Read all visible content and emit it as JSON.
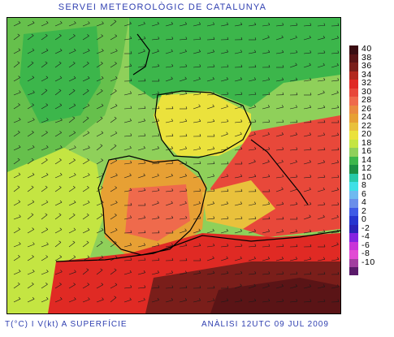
{
  "header": {
    "title": "SERVEI METEOROLÒGIC DE CATALUNYA"
  },
  "footer": {
    "variable": "T(°C) I V(kt) A SUPERFÍCIE",
    "analysis": "ANÀLISI 12UTC 09 JUL 2009"
  },
  "legend": {
    "items": [
      {
        "label": "40",
        "color": "#3a0d12"
      },
      {
        "label": "38",
        "color": "#5a1416"
      },
      {
        "label": "36",
        "color": "#7a1e1a"
      },
      {
        "label": "34",
        "color": "#b2281e"
      },
      {
        "label": "32",
        "color": "#e02a24"
      },
      {
        "label": "30",
        "color": "#e8483a"
      },
      {
        "label": "28",
        "color": "#ef6a4c"
      },
      {
        "label": "26",
        "color": "#ea8a40"
      },
      {
        "label": "24",
        "color": "#e7a034"
      },
      {
        "label": "22",
        "color": "#e9c13c"
      },
      {
        "label": "20",
        "color": "#ebe23c"
      },
      {
        "label": "18",
        "color": "#c4e542"
      },
      {
        "label": "16",
        "color": "#8fd05a"
      },
      {
        "label": "14",
        "color": "#3cb64b"
      },
      {
        "label": "12",
        "color": "#1b8f43"
      },
      {
        "label": "10",
        "color": "#26c9a8"
      },
      {
        "label": "8",
        "color": "#3ee0e6"
      },
      {
        "label": "6",
        "color": "#6fb9f0"
      },
      {
        "label": "4",
        "color": "#6a8fea"
      },
      {
        "label": "2",
        "color": "#3e5ae6"
      },
      {
        "label": "0",
        "color": "#2634cf"
      },
      {
        "label": "-2",
        "color": "#2a22b8"
      },
      {
        "label": "-4",
        "color": "#8522e0"
      },
      {
        "label": "-6",
        "color": "#c934d8"
      },
      {
        "label": "-8",
        "color": "#e24ad4"
      },
      {
        "label": "-10",
        "color": "#a23ea0"
      }
    ],
    "bottom_color": "#5a1a6a"
  }
}
